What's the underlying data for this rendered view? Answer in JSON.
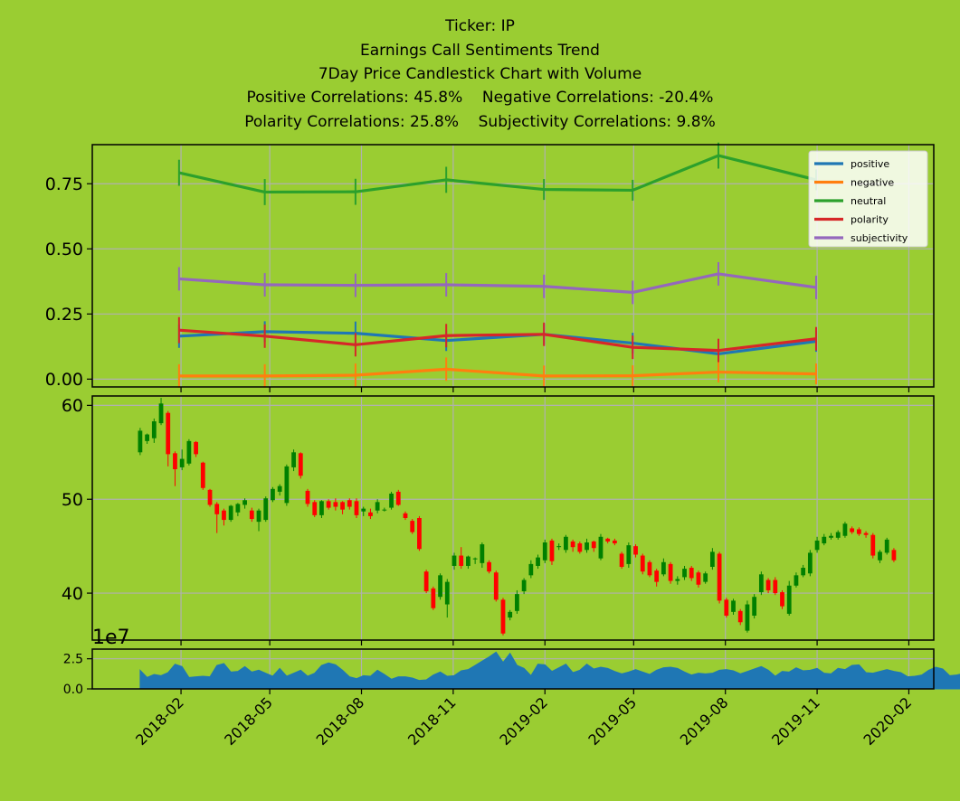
{
  "title": {
    "ticker": "Ticker: IP",
    "line2": "Earnings Call Sentiments Trend",
    "line3": "7Day Price Candlestick Chart with Volume",
    "positive_corr": "Positive Correlations: 45.8%",
    "negative_corr": "Negative Correlations: -20.4%",
    "polarity_corr": "Polarity Correlations: 25.8%",
    "subjectivity_corr": "Subjectivity Correlations: 9.8%"
  },
  "colors": {
    "background": "#9acd32",
    "positive": "#1f77b4",
    "negative": "#ff7f0e",
    "neutral": "#2ca02c",
    "polarity": "#d62728",
    "subjectivity": "#9467bd",
    "candle_up": "#008000",
    "candle_down": "#ff0000",
    "volume": "#1f77b4",
    "grid": "#b0b0b0"
  },
  "chart_data": [
    {
      "type": "line",
      "name": "sentiment",
      "x": [
        "2018-01-30",
        "2018-04-26",
        "2018-07-26",
        "2018-10-25",
        "2019-01-31",
        "2019-04-30",
        "2019-07-25",
        "2019-10-31"
      ],
      "series": [
        {
          "name": "positive",
          "values": [
            0.165,
            0.182,
            0.176,
            0.148,
            0.172,
            0.138,
            0.097,
            0.145
          ],
          "err": [
            0.045,
            0.04,
            0.045,
            0.04,
            0.04,
            0.04,
            0.04,
            0.04
          ]
        },
        {
          "name": "negative",
          "values": [
            0.012,
            0.012,
            0.015,
            0.038,
            0.012,
            0.013,
            0.027,
            0.02
          ],
          "err": [
            0.045,
            0.045,
            0.045,
            0.045,
            0.04,
            0.04,
            0.04,
            0.04
          ]
        },
        {
          "name": "neutral",
          "values": [
            0.792,
            0.718,
            0.719,
            0.765,
            0.728,
            0.725,
            0.858,
            0.765
          ],
          "err": [
            0.05,
            0.05,
            0.05,
            0.05,
            0.04,
            0.04,
            0.05,
            0.04
          ]
        },
        {
          "name": "polarity",
          "values": [
            0.188,
            0.165,
            0.132,
            0.167,
            0.172,
            0.122,
            0.11,
            0.155
          ],
          "err": [
            0.05,
            0.045,
            0.045,
            0.045,
            0.045,
            0.045,
            0.045,
            0.045
          ]
        },
        {
          "name": "subjectivity",
          "values": [
            0.385,
            0.362,
            0.36,
            0.362,
            0.356,
            0.333,
            0.404,
            0.352
          ],
          "err": [
            0.045,
            0.045,
            0.045,
            0.045,
            0.045,
            0.045,
            0.045,
            0.045
          ]
        }
      ],
      "ylim": [
        -0.03,
        0.9
      ],
      "yticks": [
        "0.00",
        "0.25",
        "0.50",
        "0.75"
      ],
      "ytick_values": [
        0,
        0.25,
        0.5,
        0.75
      ],
      "legend": [
        "positive",
        "negative",
        "neutral",
        "polarity",
        "subjectivity"
      ],
      "legend_position": "upper-right",
      "grid": true
    },
    {
      "type": "candlestick",
      "name": "price",
      "start": "2017-12-22",
      "interval_days": 7,
      "candles": [
        {
          "o": 55.0,
          "h": 57.6,
          "l": 54.7,
          "c": 57.3
        },
        {
          "o": 56.2,
          "h": 57.0,
          "l": 55.9,
          "c": 56.9
        },
        {
          "o": 56.5,
          "h": 58.6,
          "l": 56.0,
          "c": 58.3
        },
        {
          "o": 58.1,
          "h": 60.8,
          "l": 57.9,
          "c": 60.2
        },
        {
          "o": 59.2,
          "h": 59.4,
          "l": 53.5,
          "c": 54.8
        },
        {
          "o": 54.9,
          "h": 55.1,
          "l": 51.4,
          "c": 53.2
        },
        {
          "o": 53.4,
          "h": 55.3,
          "l": 53.1,
          "c": 54.3
        },
        {
          "o": 53.8,
          "h": 56.4,
          "l": 53.6,
          "c": 56.2
        },
        {
          "o": 56.1,
          "h": 56.2,
          "l": 54.5,
          "c": 54.8
        },
        {
          "o": 53.9,
          "h": 54.0,
          "l": 51.0,
          "c": 51.2
        },
        {
          "o": 51.0,
          "h": 51.1,
          "l": 49.2,
          "c": 49.4
        },
        {
          "o": 49.5,
          "h": 49.7,
          "l": 46.4,
          "c": 48.4
        },
        {
          "o": 48.8,
          "h": 49.0,
          "l": 47.2,
          "c": 47.8
        },
        {
          "o": 47.8,
          "h": 49.4,
          "l": 47.6,
          "c": 49.3
        },
        {
          "o": 48.6,
          "h": 49.6,
          "l": 48.2,
          "c": 49.5
        },
        {
          "o": 49.4,
          "h": 50.1,
          "l": 49.0,
          "c": 49.9
        },
        {
          "o": 48.8,
          "h": 49.1,
          "l": 47.6,
          "c": 47.9
        },
        {
          "o": 47.6,
          "h": 49.0,
          "l": 46.6,
          "c": 48.8
        },
        {
          "o": 47.8,
          "h": 50.3,
          "l": 47.6,
          "c": 50.1
        },
        {
          "o": 49.9,
          "h": 51.3,
          "l": 49.7,
          "c": 51.1
        },
        {
          "o": 50.8,
          "h": 51.6,
          "l": 50.4,
          "c": 51.4
        },
        {
          "o": 49.6,
          "h": 53.7,
          "l": 49.3,
          "c": 53.5
        },
        {
          "o": 53.4,
          "h": 55.3,
          "l": 53.0,
          "c": 55.0
        },
        {
          "o": 54.9,
          "h": 55.0,
          "l": 52.2,
          "c": 52.5
        },
        {
          "o": 50.9,
          "h": 51.1,
          "l": 49.2,
          "c": 49.5
        },
        {
          "o": 49.7,
          "h": 49.9,
          "l": 48.1,
          "c": 48.3
        },
        {
          "o": 48.3,
          "h": 49.9,
          "l": 48.0,
          "c": 49.8
        },
        {
          "o": 49.8,
          "h": 50.0,
          "l": 48.9,
          "c": 49.1
        },
        {
          "o": 49.7,
          "h": 50.1,
          "l": 48.8,
          "c": 49.2
        },
        {
          "o": 49.7,
          "h": 49.8,
          "l": 48.4,
          "c": 48.9
        },
        {
          "o": 49.9,
          "h": 50.1,
          "l": 48.9,
          "c": 49.2
        },
        {
          "o": 49.8,
          "h": 50.1,
          "l": 48.0,
          "c": 48.3
        },
        {
          "o": 48.7,
          "h": 49.2,
          "l": 48.2,
          "c": 49.0
        },
        {
          "o": 48.6,
          "h": 49.0,
          "l": 47.9,
          "c": 48.2
        },
        {
          "o": 48.8,
          "h": 50.0,
          "l": 48.5,
          "c": 49.7
        },
        {
          "o": 48.9,
          "h": 49.1,
          "l": 48.7,
          "c": 48.9
        },
        {
          "o": 49.1,
          "h": 50.8,
          "l": 48.9,
          "c": 50.6
        },
        {
          "o": 50.8,
          "h": 51.0,
          "l": 49.3,
          "c": 49.4
        },
        {
          "o": 48.5,
          "h": 48.7,
          "l": 47.8,
          "c": 48.0
        },
        {
          "o": 47.7,
          "h": 47.9,
          "l": 46.3,
          "c": 46.5
        },
        {
          "o": 48.0,
          "h": 48.2,
          "l": 44.5,
          "c": 44.7
        },
        {
          "o": 42.3,
          "h": 42.5,
          "l": 40.0,
          "c": 40.2
        },
        {
          "o": 40.5,
          "h": 40.7,
          "l": 38.2,
          "c": 38.4
        },
        {
          "o": 39.6,
          "h": 42.1,
          "l": 39.3,
          "c": 41.9
        },
        {
          "o": 38.8,
          "h": 41.5,
          "l": 37.4,
          "c": 41.2
        },
        {
          "o": 42.9,
          "h": 44.3,
          "l": 42.5,
          "c": 44.0
        },
        {
          "o": 44.0,
          "h": 44.9,
          "l": 42.6,
          "c": 42.9
        },
        {
          "o": 42.9,
          "h": 44.0,
          "l": 42.6,
          "c": 43.9
        },
        {
          "o": 43.6,
          "h": 43.8,
          "l": 43.1,
          "c": 43.7
        },
        {
          "o": 43.2,
          "h": 45.4,
          "l": 42.7,
          "c": 45.2
        },
        {
          "o": 43.3,
          "h": 43.5,
          "l": 42.1,
          "c": 42.3
        },
        {
          "o": 42.2,
          "h": 42.4,
          "l": 39.1,
          "c": 39.3
        },
        {
          "o": 39.3,
          "h": 39.5,
          "l": 35.5,
          "c": 35.7
        },
        {
          "o": 37.4,
          "h": 38.2,
          "l": 37.1,
          "c": 38.0
        },
        {
          "o": 38.1,
          "h": 40.3,
          "l": 37.8,
          "c": 39.9
        },
        {
          "o": 40.2,
          "h": 41.6,
          "l": 39.9,
          "c": 41.4
        },
        {
          "o": 41.9,
          "h": 43.5,
          "l": 41.6,
          "c": 43.1
        },
        {
          "o": 42.9,
          "h": 44.1,
          "l": 42.6,
          "c": 43.8
        },
        {
          "o": 43.5,
          "h": 45.7,
          "l": 43.2,
          "c": 45.4
        },
        {
          "o": 45.6,
          "h": 45.8,
          "l": 43.0,
          "c": 43.4
        },
        {
          "o": 44.9,
          "h": 45.3,
          "l": 44.6,
          "c": 45.0
        },
        {
          "o": 44.6,
          "h": 46.2,
          "l": 44.3,
          "c": 46.0
        },
        {
          "o": 45.5,
          "h": 45.7,
          "l": 44.4,
          "c": 44.9
        },
        {
          "o": 45.3,
          "h": 45.5,
          "l": 44.2,
          "c": 44.4
        },
        {
          "o": 44.6,
          "h": 45.8,
          "l": 44.3,
          "c": 45.4
        },
        {
          "o": 45.5,
          "h": 45.6,
          "l": 44.4,
          "c": 44.8
        },
        {
          "o": 43.7,
          "h": 46.3,
          "l": 43.5,
          "c": 46.0
        },
        {
          "o": 45.8,
          "h": 45.9,
          "l": 45.3,
          "c": 45.5
        },
        {
          "o": 45.6,
          "h": 45.8,
          "l": 45.1,
          "c": 45.3
        },
        {
          "o": 44.2,
          "h": 44.4,
          "l": 42.6,
          "c": 42.8
        },
        {
          "o": 43.1,
          "h": 45.4,
          "l": 42.7,
          "c": 45.1
        },
        {
          "o": 45.0,
          "h": 45.2,
          "l": 43.8,
          "c": 44.1
        },
        {
          "o": 44.0,
          "h": 44.2,
          "l": 42.0,
          "c": 42.3
        },
        {
          "o": 43.3,
          "h": 43.5,
          "l": 41.7,
          "c": 41.9
        },
        {
          "o": 42.4,
          "h": 42.6,
          "l": 40.7,
          "c": 41.2
        },
        {
          "o": 42.0,
          "h": 43.7,
          "l": 41.8,
          "c": 43.3
        },
        {
          "o": 43.1,
          "h": 43.3,
          "l": 41.0,
          "c": 41.3
        },
        {
          "o": 41.3,
          "h": 41.8,
          "l": 40.9,
          "c": 41.5
        },
        {
          "o": 41.7,
          "h": 42.9,
          "l": 41.4,
          "c": 42.6
        },
        {
          "o": 42.7,
          "h": 42.9,
          "l": 41.3,
          "c": 41.6
        },
        {
          "o": 42.2,
          "h": 42.4,
          "l": 40.6,
          "c": 40.9
        },
        {
          "o": 41.2,
          "h": 42.3,
          "l": 41.0,
          "c": 42.1
        },
        {
          "o": 42.8,
          "h": 44.8,
          "l": 42.5,
          "c": 44.4
        },
        {
          "o": 44.2,
          "h": 44.4,
          "l": 38.9,
          "c": 39.2
        },
        {
          "o": 39.3,
          "h": 39.5,
          "l": 37.4,
          "c": 37.6
        },
        {
          "o": 38.0,
          "h": 39.4,
          "l": 37.7,
          "c": 39.2
        },
        {
          "o": 38.1,
          "h": 38.3,
          "l": 36.6,
          "c": 36.9
        },
        {
          "o": 36.0,
          "h": 39.2,
          "l": 35.8,
          "c": 38.8
        },
        {
          "o": 37.6,
          "h": 39.9,
          "l": 37.3,
          "c": 39.6
        },
        {
          "o": 40.1,
          "h": 42.3,
          "l": 39.8,
          "c": 42.0
        },
        {
          "o": 41.4,
          "h": 41.6,
          "l": 40.0,
          "c": 40.3
        },
        {
          "o": 41.4,
          "h": 41.7,
          "l": 39.8,
          "c": 40.0
        },
        {
          "o": 40.1,
          "h": 40.3,
          "l": 38.3,
          "c": 38.6
        },
        {
          "o": 37.8,
          "h": 41.3,
          "l": 37.6,
          "c": 40.8
        },
        {
          "o": 40.8,
          "h": 42.2,
          "l": 40.6,
          "c": 41.9
        },
        {
          "o": 41.9,
          "h": 43.0,
          "l": 41.7,
          "c": 42.7
        },
        {
          "o": 42.1,
          "h": 44.6,
          "l": 41.8,
          "c": 44.3
        },
        {
          "o": 44.6,
          "h": 46.0,
          "l": 44.3,
          "c": 45.6
        },
        {
          "o": 45.3,
          "h": 46.3,
          "l": 45.1,
          "c": 46.0
        },
        {
          "o": 45.9,
          "h": 46.4,
          "l": 45.7,
          "c": 46.1
        },
        {
          "o": 45.9,
          "h": 46.7,
          "l": 45.7,
          "c": 46.5
        },
        {
          "o": 46.1,
          "h": 47.6,
          "l": 45.9,
          "c": 47.4
        },
        {
          "o": 46.9,
          "h": 47.1,
          "l": 46.3,
          "c": 46.5
        },
        {
          "o": 46.8,
          "h": 47.0,
          "l": 46.1,
          "c": 46.3
        },
        {
          "o": 46.4,
          "h": 46.6,
          "l": 45.9,
          "c": 46.2
        },
        {
          "o": 46.2,
          "h": 46.4,
          "l": 43.7,
          "c": 44.0
        },
        {
          "o": 43.5,
          "h": 44.6,
          "l": 43.2,
          "c": 44.4
        },
        {
          "o": 44.3,
          "h": 45.9,
          "l": 44.1,
          "c": 45.7
        },
        {
          "o": 44.6,
          "h": 44.8,
          "l": 43.3,
          "c": 43.5
        }
      ],
      "ylim": [
        35.0,
        61.0
      ],
      "yticks": [
        "40",
        "50",
        "60"
      ],
      "ytick_values": [
        40,
        50,
        60
      ],
      "grid": true
    },
    {
      "type": "area",
      "name": "volume",
      "start": "2017-12-22",
      "interval_days": 7,
      "values": [
        1.55,
        0.95,
        1.2,
        1.1,
        1.35,
        2.05,
        1.85,
        0.95,
        1.0,
        1.05,
        1.0,
        1.95,
        2.1,
        1.4,
        1.45,
        1.85,
        1.4,
        1.55,
        1.3,
        1.05,
        1.7,
        1.05,
        1.3,
        1.55,
        1.05,
        1.3,
        1.95,
        2.15,
        2.0,
        1.55,
        1.0,
        0.85,
        1.1,
        1.05,
        1.55,
        1.2,
        0.8,
        1.0,
        1.0,
        0.9,
        0.7,
        0.75,
        1.15,
        1.4,
        1.05,
        1.1,
        1.5,
        1.6,
        1.95,
        2.3,
        2.65,
        3.05,
        2.2,
        2.95,
        1.95,
        1.7,
        1.1,
        2.05,
        2.0,
        1.45,
        1.75,
        2.05,
        1.35,
        1.55,
        2.05,
        1.65,
        1.8,
        1.7,
        1.45,
        1.25,
        1.4,
        1.6,
        1.4,
        1.2,
        1.55,
        1.75,
        1.8,
        1.7,
        1.4,
        1.15,
        1.3,
        1.25,
        1.3,
        1.55,
        1.6,
        1.5,
        1.25,
        1.45,
        1.65,
        1.85,
        1.55,
        1.05,
        1.45,
        1.4,
        1.75,
        1.5,
        1.55,
        1.7,
        1.3,
        1.25,
        1.7,
        1.6,
        1.95,
        2.0,
        1.35,
        1.3,
        1.45,
        1.6,
        1.45,
        1.35,
        1.0,
        1.05,
        1.15,
        1.55,
        1.8,
        1.65,
        1.1,
        1.15,
        1.3,
        1.4,
        1.55,
        1.75,
        2.25,
        2.5,
        0.5,
        1.0,
        1.2,
        1.0,
        1.0
      ],
      "ylim": [
        0,
        3.3
      ],
      "yticks": [
        "0.0",
        "2.5"
      ],
      "ytick_values": [
        0,
        2.5
      ],
      "offset_label": "1e7",
      "grid": true
    }
  ],
  "xaxis": {
    "date_min": "2017-11-04",
    "date_max": "2020-02-26",
    "ticks": [
      "2018-02",
      "2018-05",
      "2018-08",
      "2018-11",
      "2019-02",
      "2019-05",
      "2019-08",
      "2019-11",
      "2020-02"
    ]
  }
}
